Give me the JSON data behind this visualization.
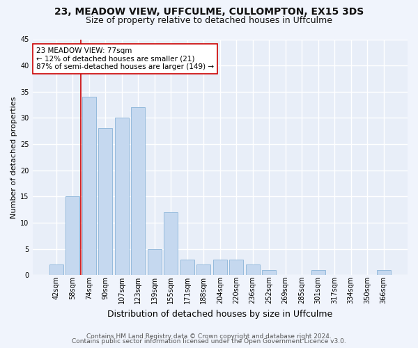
{
  "title1": "23, MEADOW VIEW, UFFCULME, CULLOMPTON, EX15 3DS",
  "title2": "Size of property relative to detached houses in Uffculme",
  "xlabel": "Distribution of detached houses by size in Uffculme",
  "ylabel": "Number of detached properties",
  "categories": [
    "42sqm",
    "58sqm",
    "74sqm",
    "90sqm",
    "107sqm",
    "123sqm",
    "139sqm",
    "155sqm",
    "171sqm",
    "188sqm",
    "204sqm",
    "220sqm",
    "236sqm",
    "252sqm",
    "269sqm",
    "285sqm",
    "301sqm",
    "317sqm",
    "334sqm",
    "350sqm",
    "366sqm"
  ],
  "values": [
    2,
    15,
    34,
    28,
    30,
    32,
    5,
    12,
    3,
    2,
    3,
    3,
    2,
    1,
    0,
    0,
    1,
    0,
    0,
    0,
    1
  ],
  "bar_color": "#c5d8ef",
  "bar_edge_color": "#8ab4d8",
  "ylim": [
    0,
    45
  ],
  "yticks": [
    0,
    5,
    10,
    15,
    20,
    25,
    30,
    35,
    40,
    45
  ],
  "subject_bin_index": 2,
  "vline_x": 1.5,
  "vline_color": "#cc0000",
  "annotation_line1": "23 MEADOW VIEW: 77sqm",
  "annotation_line2": "← 12% of detached houses are smaller (21)",
  "annotation_line3": "87% of semi-detached houses are larger (149) →",
  "annotation_border_color": "#cc0000",
  "footer1": "Contains HM Land Registry data © Crown copyright and database right 2024.",
  "footer2": "Contains public sector information licensed under the Open Government Licence v3.0.",
  "plot_bg_color": "#e8eef8",
  "fig_bg_color": "#f0f4fc",
  "grid_color": "#ffffff",
  "title1_fontsize": 10,
  "title2_fontsize": 9,
  "xlabel_fontsize": 9,
  "ylabel_fontsize": 8,
  "tick_fontsize": 7,
  "annot_fontsize": 7.5,
  "footer_fontsize": 6.5
}
